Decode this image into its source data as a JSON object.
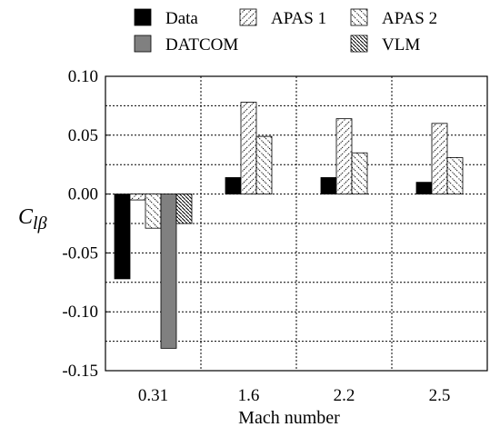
{
  "chart_data": {
    "type": "bar",
    "categories": [
      "0.31",
      "1.6",
      "2.2",
      "2.5"
    ],
    "xlabel": "Mach number",
    "ylabel": "C_lβ",
    "ylabel_main": "C",
    "ylabel_sub": "lβ",
    "ylim": [
      -0.15,
      0.1
    ],
    "yticks": [
      "0.10",
      "0.05",
      "0.00",
      "-0.05",
      "-0.10",
      "-0.15"
    ],
    "ytick_values": [
      0.1,
      0.05,
      0.0,
      -0.05,
      -0.1,
      -0.15
    ],
    "grid": "horizontal dotted every 0.025, vertical dotted between categories",
    "legend_position": "top",
    "series": [
      {
        "name": "Data",
        "pattern": "solid-black",
        "values": [
          -0.072,
          0.014,
          0.014,
          0.01
        ]
      },
      {
        "name": "APAS 1",
        "pattern": "hatch-forward",
        "values": [
          -0.005,
          0.078,
          0.064,
          0.06
        ]
      },
      {
        "name": "APAS 2",
        "pattern": "hatch-back",
        "values": [
          -0.029,
          0.049,
          0.035,
          0.031
        ]
      },
      {
        "name": "DATCOM",
        "pattern": "solid-gray",
        "values": [
          -0.131,
          null,
          null,
          null
        ]
      },
      {
        "name": "VLM",
        "pattern": "hatch-dense",
        "values": [
          -0.025,
          null,
          null,
          null
        ]
      }
    ]
  }
}
